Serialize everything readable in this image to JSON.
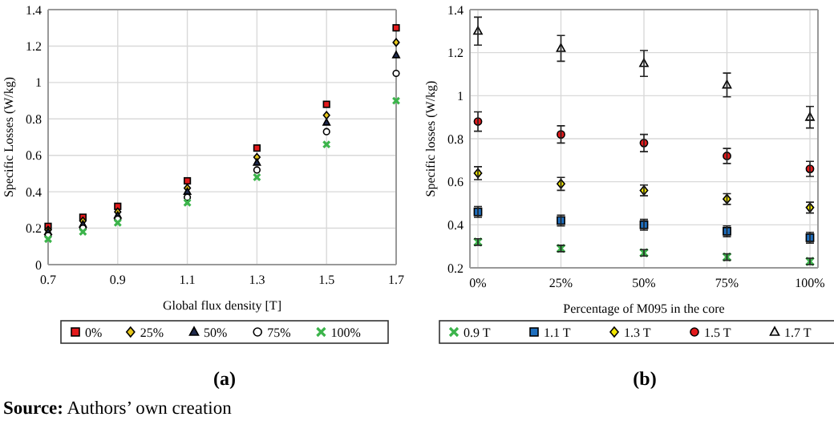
{
  "chart_data": [
    {
      "type": "scatter",
      "title": "(a)",
      "xlabel": "Global flux density [T]",
      "ylabel": "Specific Losses (W/kg)",
      "x": [
        0.7,
        0.8,
        0.9,
        1.1,
        1.3,
        1.5,
        1.7
      ],
      "xlim": [
        0.7,
        1.7
      ],
      "xticks": [
        0.7,
        0.9,
        1.1,
        1.3,
        1.5,
        1.7
      ],
      "ylim": [
        0,
        1.4
      ],
      "yticks": [
        0,
        0.2,
        0.4,
        0.6,
        0.8,
        1,
        1.2,
        1.4
      ],
      "grid": true,
      "legend": "bottom",
      "annotations": [
        "Source: Authors’ own creation"
      ],
      "series": [
        {
          "name": "0%",
          "color": "#e31a1c",
          "marker": "square",
          "values": [
            0.21,
            0.26,
            0.32,
            0.46,
            0.64,
            0.88,
            1.3
          ]
        },
        {
          "name": "25%",
          "color": "#e6c619",
          "marker": "diamond",
          "values": [
            0.19,
            0.24,
            0.29,
            0.42,
            0.59,
            0.82,
            1.22
          ]
        },
        {
          "name": "50%",
          "color": "#1f2a4d",
          "marker": "triangle",
          "values": [
            0.18,
            0.22,
            0.27,
            0.4,
            0.56,
            0.78,
            1.15
          ]
        },
        {
          "name": "75%",
          "color": "#ffffff",
          "marker": "circle",
          "values": [
            0.16,
            0.2,
            0.25,
            0.37,
            0.52,
            0.73,
            1.05
          ]
        },
        {
          "name": "100%",
          "color": "#3cb44b",
          "marker": "cross",
          "values": [
            0.14,
            0.18,
            0.23,
            0.34,
            0.48,
            0.66,
            0.9
          ]
        }
      ]
    },
    {
      "type": "scatter",
      "title": "(b)",
      "xlabel": "Percentage of M095 in the core",
      "ylabel": "Specific losses (W/kg)",
      "categories": [
        "0%",
        "25%",
        "50%",
        "75%",
        "100%"
      ],
      "ylim": [
        0.2,
        1.4
      ],
      "yticks": [
        0.2,
        0.4,
        0.6,
        0.8,
        1,
        1.2,
        1.4
      ],
      "grid": true,
      "legend": "bottom",
      "series": [
        {
          "name": "0.9 T",
          "color": "#3cb44b",
          "marker": "cross",
          "values": [
            0.32,
            0.29,
            0.27,
            0.25,
            0.23
          ],
          "errors": [
            0.015,
            0.015,
            0.015,
            0.015,
            0.015
          ]
        },
        {
          "name": "1.1 T",
          "color": "#1f6fbf",
          "marker": "square",
          "values": [
            0.46,
            0.42,
            0.4,
            0.37,
            0.34
          ],
          "errors": [
            0.025,
            0.025,
            0.025,
            0.025,
            0.025
          ]
        },
        {
          "name": "1.3 T",
          "color": "#f2e600",
          "marker": "diamond",
          "values": [
            0.64,
            0.59,
            0.56,
            0.52,
            0.48
          ],
          "errors": [
            0.03,
            0.03,
            0.025,
            0.025,
            0.025
          ]
        },
        {
          "name": "1.5 T",
          "color": "#e31a1c",
          "marker": "circle",
          "values": [
            0.88,
            0.82,
            0.78,
            0.72,
            0.66
          ],
          "errors": [
            0.045,
            0.04,
            0.04,
            0.035,
            0.035
          ]
        },
        {
          "name": "1.7 T",
          "color": "#e8e8e8",
          "marker": "triangle",
          "values": [
            1.3,
            1.22,
            1.15,
            1.05,
            0.9
          ],
          "errors": [
            0.065,
            0.06,
            0.06,
            0.055,
            0.05
          ]
        }
      ]
    }
  ]
}
